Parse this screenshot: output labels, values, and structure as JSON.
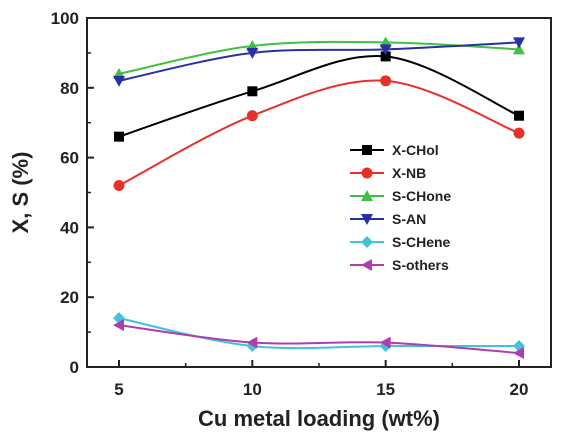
{
  "chart_data": {
    "type": "line",
    "title": "",
    "xlabel": "Cu metal loading (wt%)",
    "ylabel": "X, S (%)",
    "x": [
      5,
      10,
      15,
      20
    ],
    "xticks": [
      "5",
      "10",
      "15",
      "20"
    ],
    "xlim": [
      3.8,
      21.2
    ],
    "ylim": [
      0,
      100
    ],
    "yticks": [
      "0",
      "20",
      "40",
      "60",
      "80",
      "100"
    ],
    "grid": false,
    "legend_position": "center-right",
    "series": [
      {
        "name": "X-CHol",
        "values": [
          66,
          79,
          89,
          72
        ],
        "color": "#000000",
        "marker": "square"
      },
      {
        "name": "X-NB",
        "values": [
          52,
          72,
          82,
          67
        ],
        "color": "#e8302a",
        "marker": "circle"
      },
      {
        "name": "S-CHone",
        "values": [
          84,
          92,
          93,
          91
        ],
        "color": "#43c043",
        "marker": "triangle-up"
      },
      {
        "name": "S-AN",
        "values": [
          82,
          90,
          91,
          93
        ],
        "color": "#2a2fa8",
        "marker": "triangle-down"
      },
      {
        "name": "S-CHene",
        "values": [
          14,
          6,
          6,
          6
        ],
        "color": "#3fc4d8",
        "marker": "diamond"
      },
      {
        "name": "S-others",
        "values": [
          12,
          7,
          7,
          4
        ],
        "color": "#b03cb0",
        "marker": "triangle-left"
      }
    ]
  }
}
